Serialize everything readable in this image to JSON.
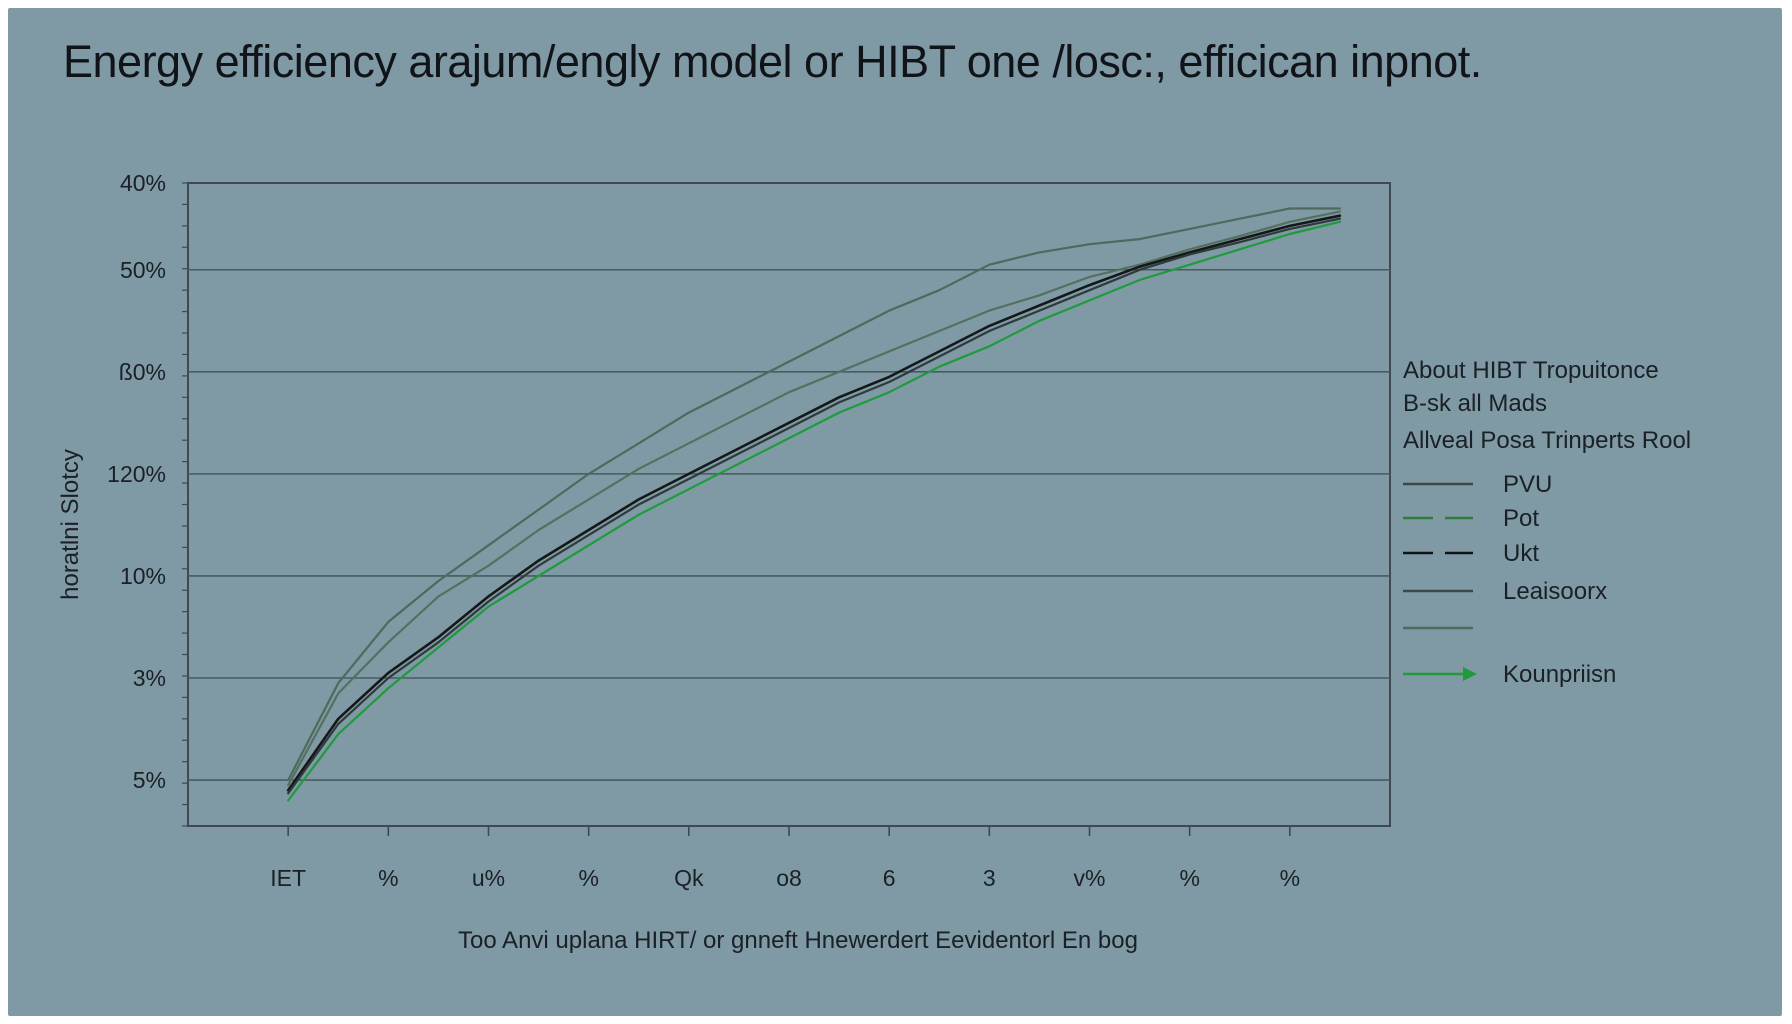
{
  "chart_data": {
    "type": "line",
    "title": "Energy efficiency arajum/engly model or HIBT one /losc:, efficican inpnot.",
    "xlabel": "Too Anvi uplana HIRT/ or gnneft Hnewerdert Eevidentorl En bog",
    "ylabel": "horatlni Slotcy",
    "y_tick_labels": [
      "5%",
      "3%",
      "10%",
      "120%",
      "ß0%",
      "50%",
      "40%"
    ],
    "x_tick_labels": [
      "IET",
      "%",
      "u%",
      "%",
      "Qk",
      "o8",
      "6",
      "3",
      "v%",
      "%",
      "%"
    ],
    "ylim": [
      0,
      6.3
    ],
    "xlim": [
      0,
      12
    ],
    "grid": true,
    "legend_position": "right",
    "legend_header": [
      "About HIBT Tropuitonce",
      "B-sk all Mads",
      "Allveal  Posa Trinperts Rool"
    ],
    "x": [
      1,
      1.5,
      2,
      2.5,
      3,
      3.5,
      4,
      4.5,
      5,
      5.5,
      6,
      6.5,
      7,
      7.5,
      8,
      8.5,
      9,
      9.5,
      10,
      10.5,
      11,
      11.5
    ],
    "series": [
      {
        "name": "PVU",
        "color": "#4e6a5c",
        "dash": "",
        "values": [
          0.45,
          1.4,
          2.0,
          2.4,
          2.75,
          3.1,
          3.45,
          3.75,
          4.05,
          4.3,
          4.55,
          4.8,
          5.05,
          5.25,
          5.5,
          5.62,
          5.7,
          5.75,
          5.85,
          5.95,
          6.05,
          6.05
        ]
      },
      {
        "name": "Pot",
        "color": "#56705f",
        "dash": "",
        "values": [
          0.4,
          1.3,
          1.8,
          2.25,
          2.55,
          2.9,
          3.2,
          3.5,
          3.75,
          4.0,
          4.25,
          4.45,
          4.65,
          4.85,
          5.05,
          5.2,
          5.38,
          5.5,
          5.65,
          5.78,
          5.92,
          6.02
        ]
      },
      {
        "name": "Ukt",
        "color": "#141818",
        "dash": "",
        "values": [
          0.35,
          1.05,
          1.5,
          1.85,
          2.25,
          2.6,
          2.9,
          3.2,
          3.45,
          3.7,
          3.95,
          4.2,
          4.4,
          4.65,
          4.9,
          5.1,
          5.3,
          5.48,
          5.62,
          5.75,
          5.88,
          5.98
        ]
      },
      {
        "name": "Leaisoorx",
        "color": "#2f3a3c",
        "dash": "",
        "values": [
          0.32,
          1.0,
          1.45,
          1.8,
          2.2,
          2.55,
          2.85,
          3.15,
          3.4,
          3.65,
          3.9,
          4.15,
          4.35,
          4.6,
          4.85,
          5.05,
          5.25,
          5.45,
          5.6,
          5.72,
          5.85,
          5.95
        ]
      },
      {
        "name": "Kounpriisn",
        "color": "#1f9a3c",
        "dash": "",
        "values": [
          0.25,
          0.9,
          1.35,
          1.75,
          2.15,
          2.45,
          2.75,
          3.05,
          3.3,
          3.55,
          3.8,
          4.05,
          4.25,
          4.5,
          4.7,
          4.95,
          5.15,
          5.35,
          5.5,
          5.65,
          5.8,
          5.92
        ]
      }
    ],
    "legend_entries": [
      {
        "label": "PVU",
        "color": "#3b4a48",
        "style": "solid"
      },
      {
        "label": "Pot",
        "color": "#2e7d3e",
        "style": "dashed"
      },
      {
        "label": "Ukt",
        "color": "#101414",
        "style": "dashed"
      },
      {
        "label": "Leaisoorx",
        "color": "#3b4a48",
        "style": "solid"
      },
      {
        "label": "",
        "color": "#4e6a5c",
        "style": "solid"
      },
      {
        "label": "Kounpriisn",
        "color": "#1f9a3c",
        "style": "arrow"
      }
    ]
  }
}
